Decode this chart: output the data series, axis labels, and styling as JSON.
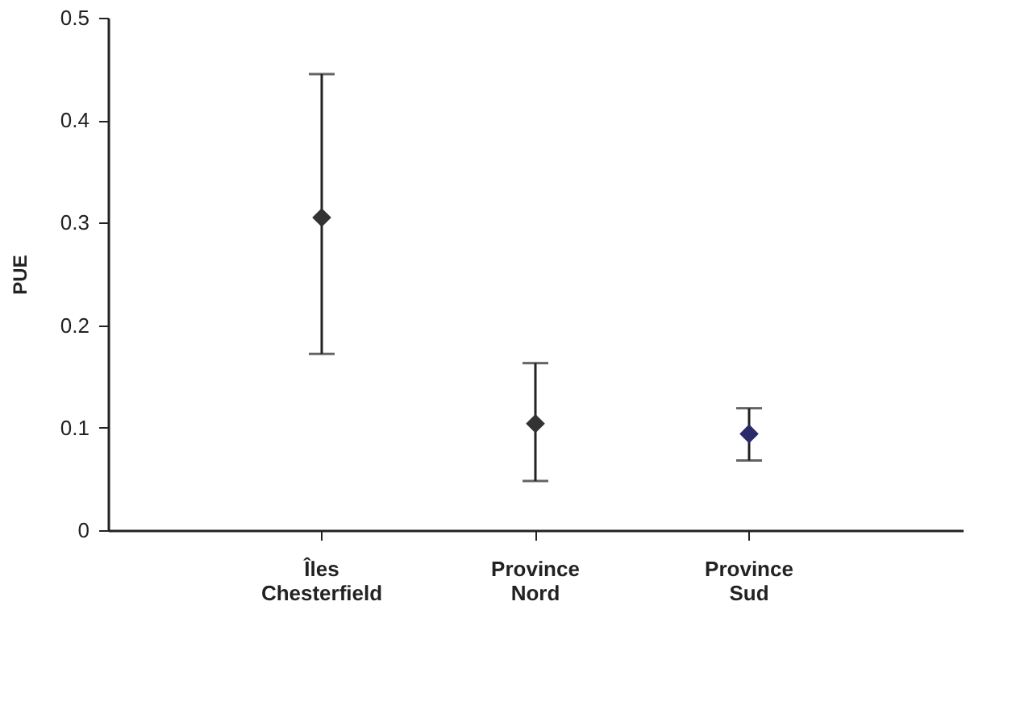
{
  "chart_data": {
    "type": "scatter",
    "ylabel": "PUE",
    "categories": [
      "Îles Chesterfield",
      "Province Nord",
      "Province Sud"
    ],
    "values": [
      0.305,
      0.104,
      0.094
    ],
    "errors": [
      [
        0.172,
        0.445
      ],
      [
        0.048,
        0.163
      ],
      [
        0.068,
        0.119
      ]
    ],
    "colors": [
      "#333333",
      "#333333",
      "#2b2a6b"
    ],
    "ylim": [
      0,
      0.5
    ],
    "yticks": [
      0,
      0.1,
      0.2,
      0.3,
      0.4,
      0.5
    ],
    "marker": "diamond",
    "grid": false
  }
}
